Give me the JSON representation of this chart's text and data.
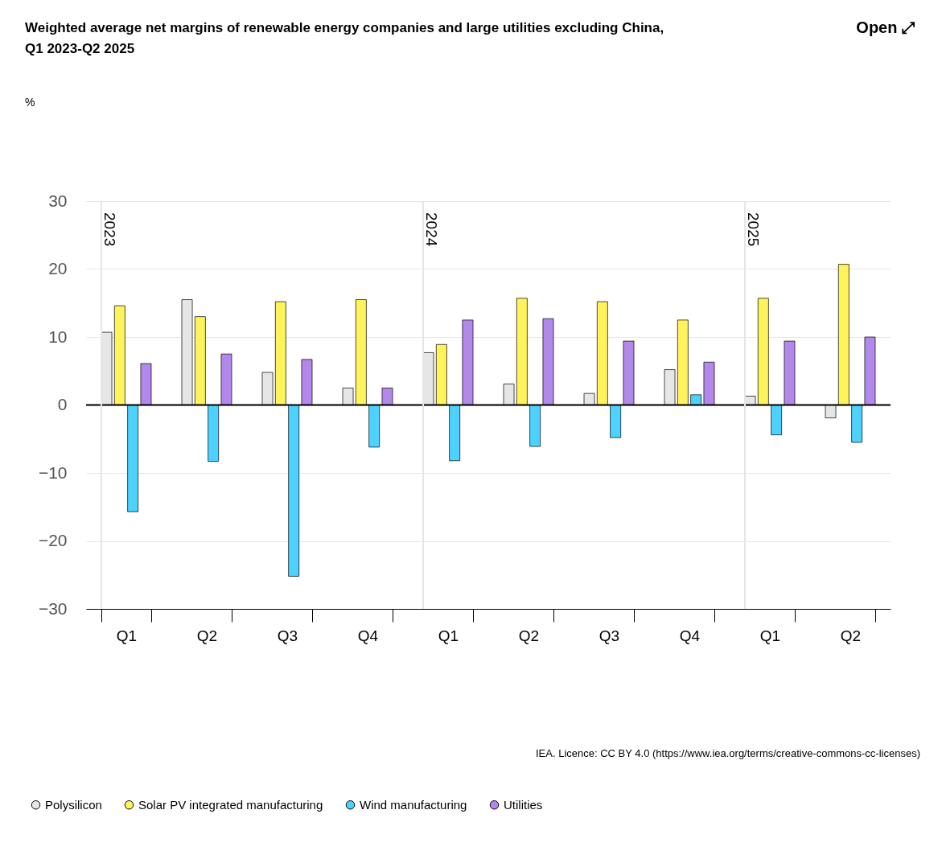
{
  "chart_data": {
    "type": "bar",
    "title": "Weighted average net margins of renewable energy companies and large utilities excluding China, Q1 2023-Q2 2025",
    "categories": [
      "Q1",
      "Q2",
      "Q3",
      "Q4",
      "Q1",
      "Q2",
      "Q3",
      "Q4",
      "Q1",
      "Q2"
    ],
    "series": [
      {
        "name": "Polysilicon",
        "color": "#e6e6e6",
        "values": [
          10.7,
          15.5,
          4.8,
          2.5,
          7.7,
          3.1,
          1.7,
          5.2,
          1.3,
          -1.9
        ]
      },
      {
        "name": "Solar PV integrated manufacturing",
        "color": "#fff35c",
        "values": [
          14.6,
          13.0,
          15.2,
          15.5,
          8.9,
          15.7,
          15.2,
          12.5,
          15.7,
          20.7
        ]
      },
      {
        "name": "Wind manufacturing",
        "color": "#4dd2ff",
        "values": [
          -15.7,
          -8.3,
          -25.2,
          -6.2,
          -8.2,
          -6.1,
          -4.8,
          1.5,
          -4.4,
          -5.5
        ]
      },
      {
        "name": "Utilities",
        "color": "#b388eb",
        "values": [
          6.1,
          7.5,
          6.7,
          2.5,
          12.5,
          12.7,
          9.4,
          6.3,
          9.4,
          10.0
        ]
      }
    ],
    "ylim": [
      -30,
      30
    ],
    "yticks": [
      -30,
      -20,
      -10,
      0,
      10,
      20,
      30
    ],
    "grid": "y",
    "legend": "bottom",
    "marker": "circle",
    "ref_lines": [
      {
        "axis": "y",
        "value": 0,
        "color": "#000000"
      }
    ],
    "annotations": [
      "2023",
      "2024",
      "2025",
      "%",
      "Open ⤢",
      "IEA. Licence: CC BY 4.0 (https://www.iea.org/terms/creative-commons-cc-licenses)"
    ]
  }
}
